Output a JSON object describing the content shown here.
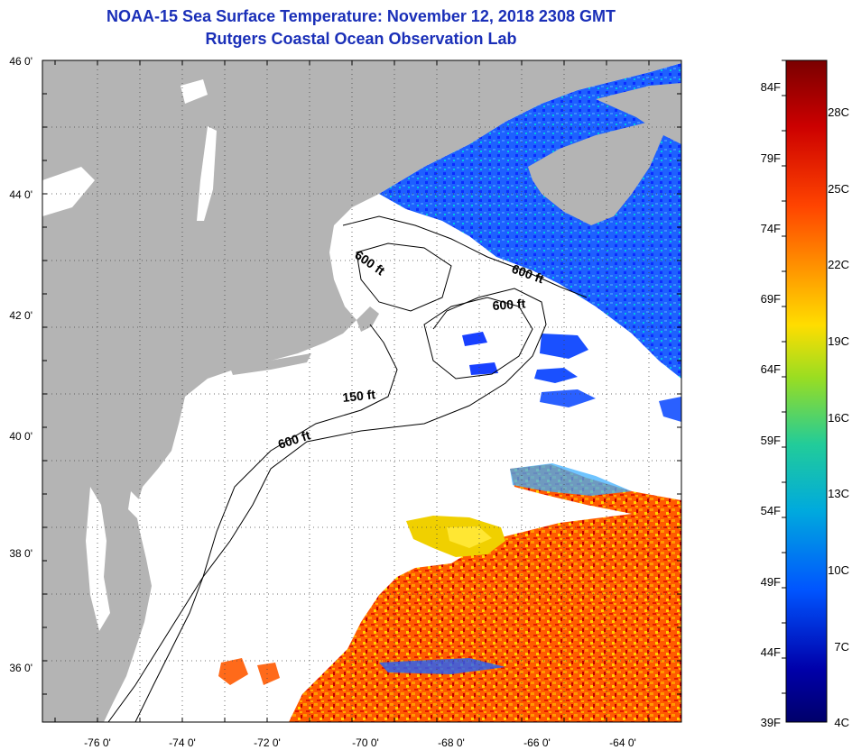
{
  "title": "NOAA-15 Sea Surface Temperature:  November 12, 2018 2308 GMT",
  "subtitle": "Rutgers Coastal Ocean Observation Lab",
  "map": {
    "lat_labels": [
      "46 0'",
      "44 0'",
      "42 0'",
      "40 0'",
      "38 0'",
      "36 0'"
    ],
    "lon_labels": [
      "-76 0'",
      "-74 0'",
      "-72 0'",
      "-70 0'",
      "-68 0'",
      "-66 0'",
      "-64 0'"
    ],
    "contour_labels": [
      "600 ft",
      "600 ft",
      "600 ft",
      "150 ft",
      "600 ft"
    ],
    "colors": {
      "land": "#b4b4b4",
      "no_data": "#ffffff",
      "contour": "#000000"
    }
  },
  "colorbar": {
    "fahrenheit_labels": [
      "84F",
      "79F",
      "74F",
      "69F",
      "64F",
      "59F",
      "54F",
      "49F",
      "44F",
      "39F"
    ],
    "celsius_labels": [
      "28C",
      "25C",
      "22C",
      "19C",
      "16C",
      "13C",
      "10C",
      "7C",
      "4C"
    ],
    "stops": [
      "#7a0000",
      "#cc0000",
      "#ff4400",
      "#ff9900",
      "#ffdd00",
      "#99dd22",
      "#22cc99",
      "#00aadd",
      "#0055ff",
      "#0000aa",
      "#00006a"
    ]
  }
}
